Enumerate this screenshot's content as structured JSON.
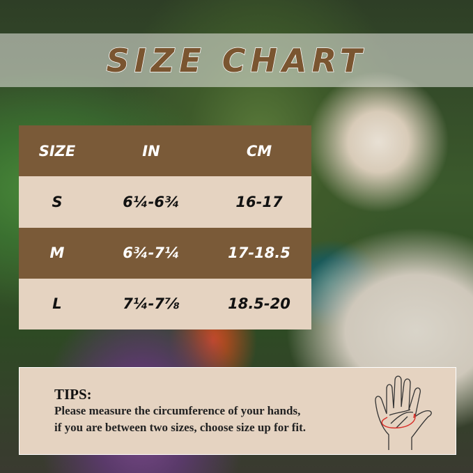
{
  "title": "SIZE CHART",
  "table": {
    "headers": [
      "SIZE",
      "IN",
      "CM"
    ],
    "rows": [
      [
        "S",
        "6¼-6¾",
        "16-17"
      ],
      [
        "M",
        "6¾-7¼",
        "17-18.5"
      ],
      [
        "L",
        "7¼-7⅞",
        "18.5-20"
      ]
    ]
  },
  "tips": {
    "heading": "TIPS:",
    "line1": "Please measure the circumference of your hands,",
    "line2": "if you are between two sizes, choose size up for fit."
  },
  "colors": {
    "brown": "#7a5a38",
    "beige": "#e5d3c1"
  },
  "icons": [
    "hand-measure-icon"
  ]
}
